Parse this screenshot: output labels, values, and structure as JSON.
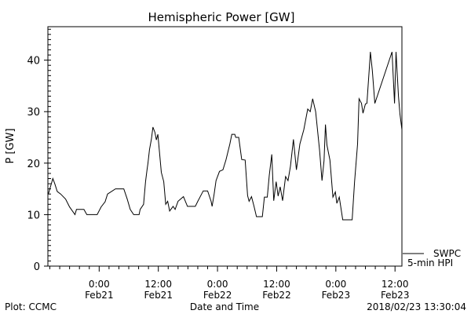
{
  "chart_data": {
    "type": "line",
    "title": "Hemispheric Power [GW]",
    "xlabel": "Date and Time",
    "ylabel": "P [GW]",
    "x_unit": "hours since 2018-02-21 00:00",
    "xlim": [
      -10.4,
      61.4
    ],
    "ylim": [
      0,
      46.5
    ],
    "grid": false,
    "y_ticks": [
      0,
      10,
      20,
      30,
      40
    ],
    "x_ticks": [
      {
        "x": 0,
        "line1": "0:00",
        "line2": "Feb21"
      },
      {
        "x": 12,
        "line1": "12:00",
        "line2": "Feb21"
      },
      {
        "x": 24,
        "line1": "0:00",
        "line2": "Feb22"
      },
      {
        "x": 36,
        "line1": "12:00",
        "line2": "Feb22"
      },
      {
        "x": 48,
        "line1": "0:00",
        "line2": "Feb23"
      },
      {
        "x": 60,
        "line1": "12:00",
        "line2": "Feb23"
      }
    ],
    "legend": {
      "placement": "bottom-right",
      "line1": "SWPC",
      "line2": "5-min HPI"
    },
    "series": [
      {
        "name": "SWPC 5-min HPI",
        "x": [
          -10.3,
          -10.0,
          -9.4,
          -9.0,
          -8.5,
          -7.8,
          -6.8,
          -6.0,
          -4.9,
          -4.6,
          -3.1,
          -2.5,
          -0.4,
          0.4,
          1.2,
          1.7,
          3.3,
          5.0,
          5.7,
          6.3,
          7.0,
          8.1,
          8.3,
          9.0,
          9.4,
          9.7,
          9.9,
          10.2,
          10.6,
          10.9,
          11.3,
          11.6,
          11.9,
          12.6,
          13.1,
          13.5,
          13.9,
          14.3,
          15.0,
          15.4,
          16.0,
          17.1,
          17.9,
          19.5,
          20.0,
          21.1,
          22.0,
          22.7,
          22.9,
          23.3,
          23.7,
          24.4,
          25.1,
          25.7,
          26.5,
          26.9,
          27.5,
          27.7,
          28.3,
          28.9,
          29.6,
          30.1,
          30.4,
          30.9,
          31.4,
          31.9,
          33.1,
          33.5,
          34.1,
          34.5,
          35.0,
          35.4,
          35.9,
          36.3,
          36.7,
          37.2,
          37.8,
          38.3,
          38.8,
          39.4,
          40.0,
          40.7,
          41.5,
          42.3,
          42.8,
          43.3,
          43.9,
          44.7,
          45.2,
          45.6,
          45.9,
          46.2,
          46.8,
          47.4,
          47.9,
          48.2,
          48.7,
          49.4,
          51.3,
          51.8,
          52.4,
          52.7,
          53.2,
          53.5,
          54.0,
          54.3,
          54.8,
          55.0,
          55.4,
          55.9,
          59.4,
          59.9,
          60.2,
          60.7,
          61.0,
          61.4
        ],
        "y": [
          14,
          15,
          17,
          16,
          14.5,
          14,
          13,
          11.5,
          10,
          11,
          11,
          10,
          10,
          11.5,
          12.5,
          14,
          15,
          15,
          13,
          11,
          10,
          10,
          11,
          12,
          16.4,
          18.7,
          20,
          22.6,
          24.7,
          27,
          26,
          24.5,
          25.6,
          18.2,
          16.4,
          12,
          12.6,
          10.7,
          11.6,
          11,
          12.6,
          13.5,
          11.6,
          11.6,
          12.6,
          14.6,
          14.6,
          12.6,
          11.6,
          13.9,
          16.6,
          18.4,
          18.7,
          20.6,
          23.7,
          25.6,
          25.6,
          25,
          25,
          20.7,
          20.6,
          13.7,
          12.6,
          13.5,
          11.6,
          9.6,
          9.6,
          13.4,
          13.4,
          17.6,
          21.7,
          12.7,
          16.4,
          13.6,
          15.4,
          12.7,
          17.4,
          16.6,
          19.4,
          24.6,
          18.7,
          23.7,
          26.5,
          30.5,
          30,
          32.5,
          30,
          22.5,
          16.6,
          20.5,
          27.5,
          23.5,
          20.6,
          13.4,
          14.4,
          12.2,
          13.4,
          9,
          9,
          16.4,
          23.7,
          32.5,
          31.6,
          29.7,
          31.5,
          31.6,
          38.5,
          41.6,
          38,
          31.6,
          41.6,
          31.6,
          41.6,
          33,
          29.5,
          26.5
        ]
      }
    ]
  },
  "footer": {
    "left": "Plot: CCMC",
    "timestamp": "2018/02/23 13:30:04"
  }
}
